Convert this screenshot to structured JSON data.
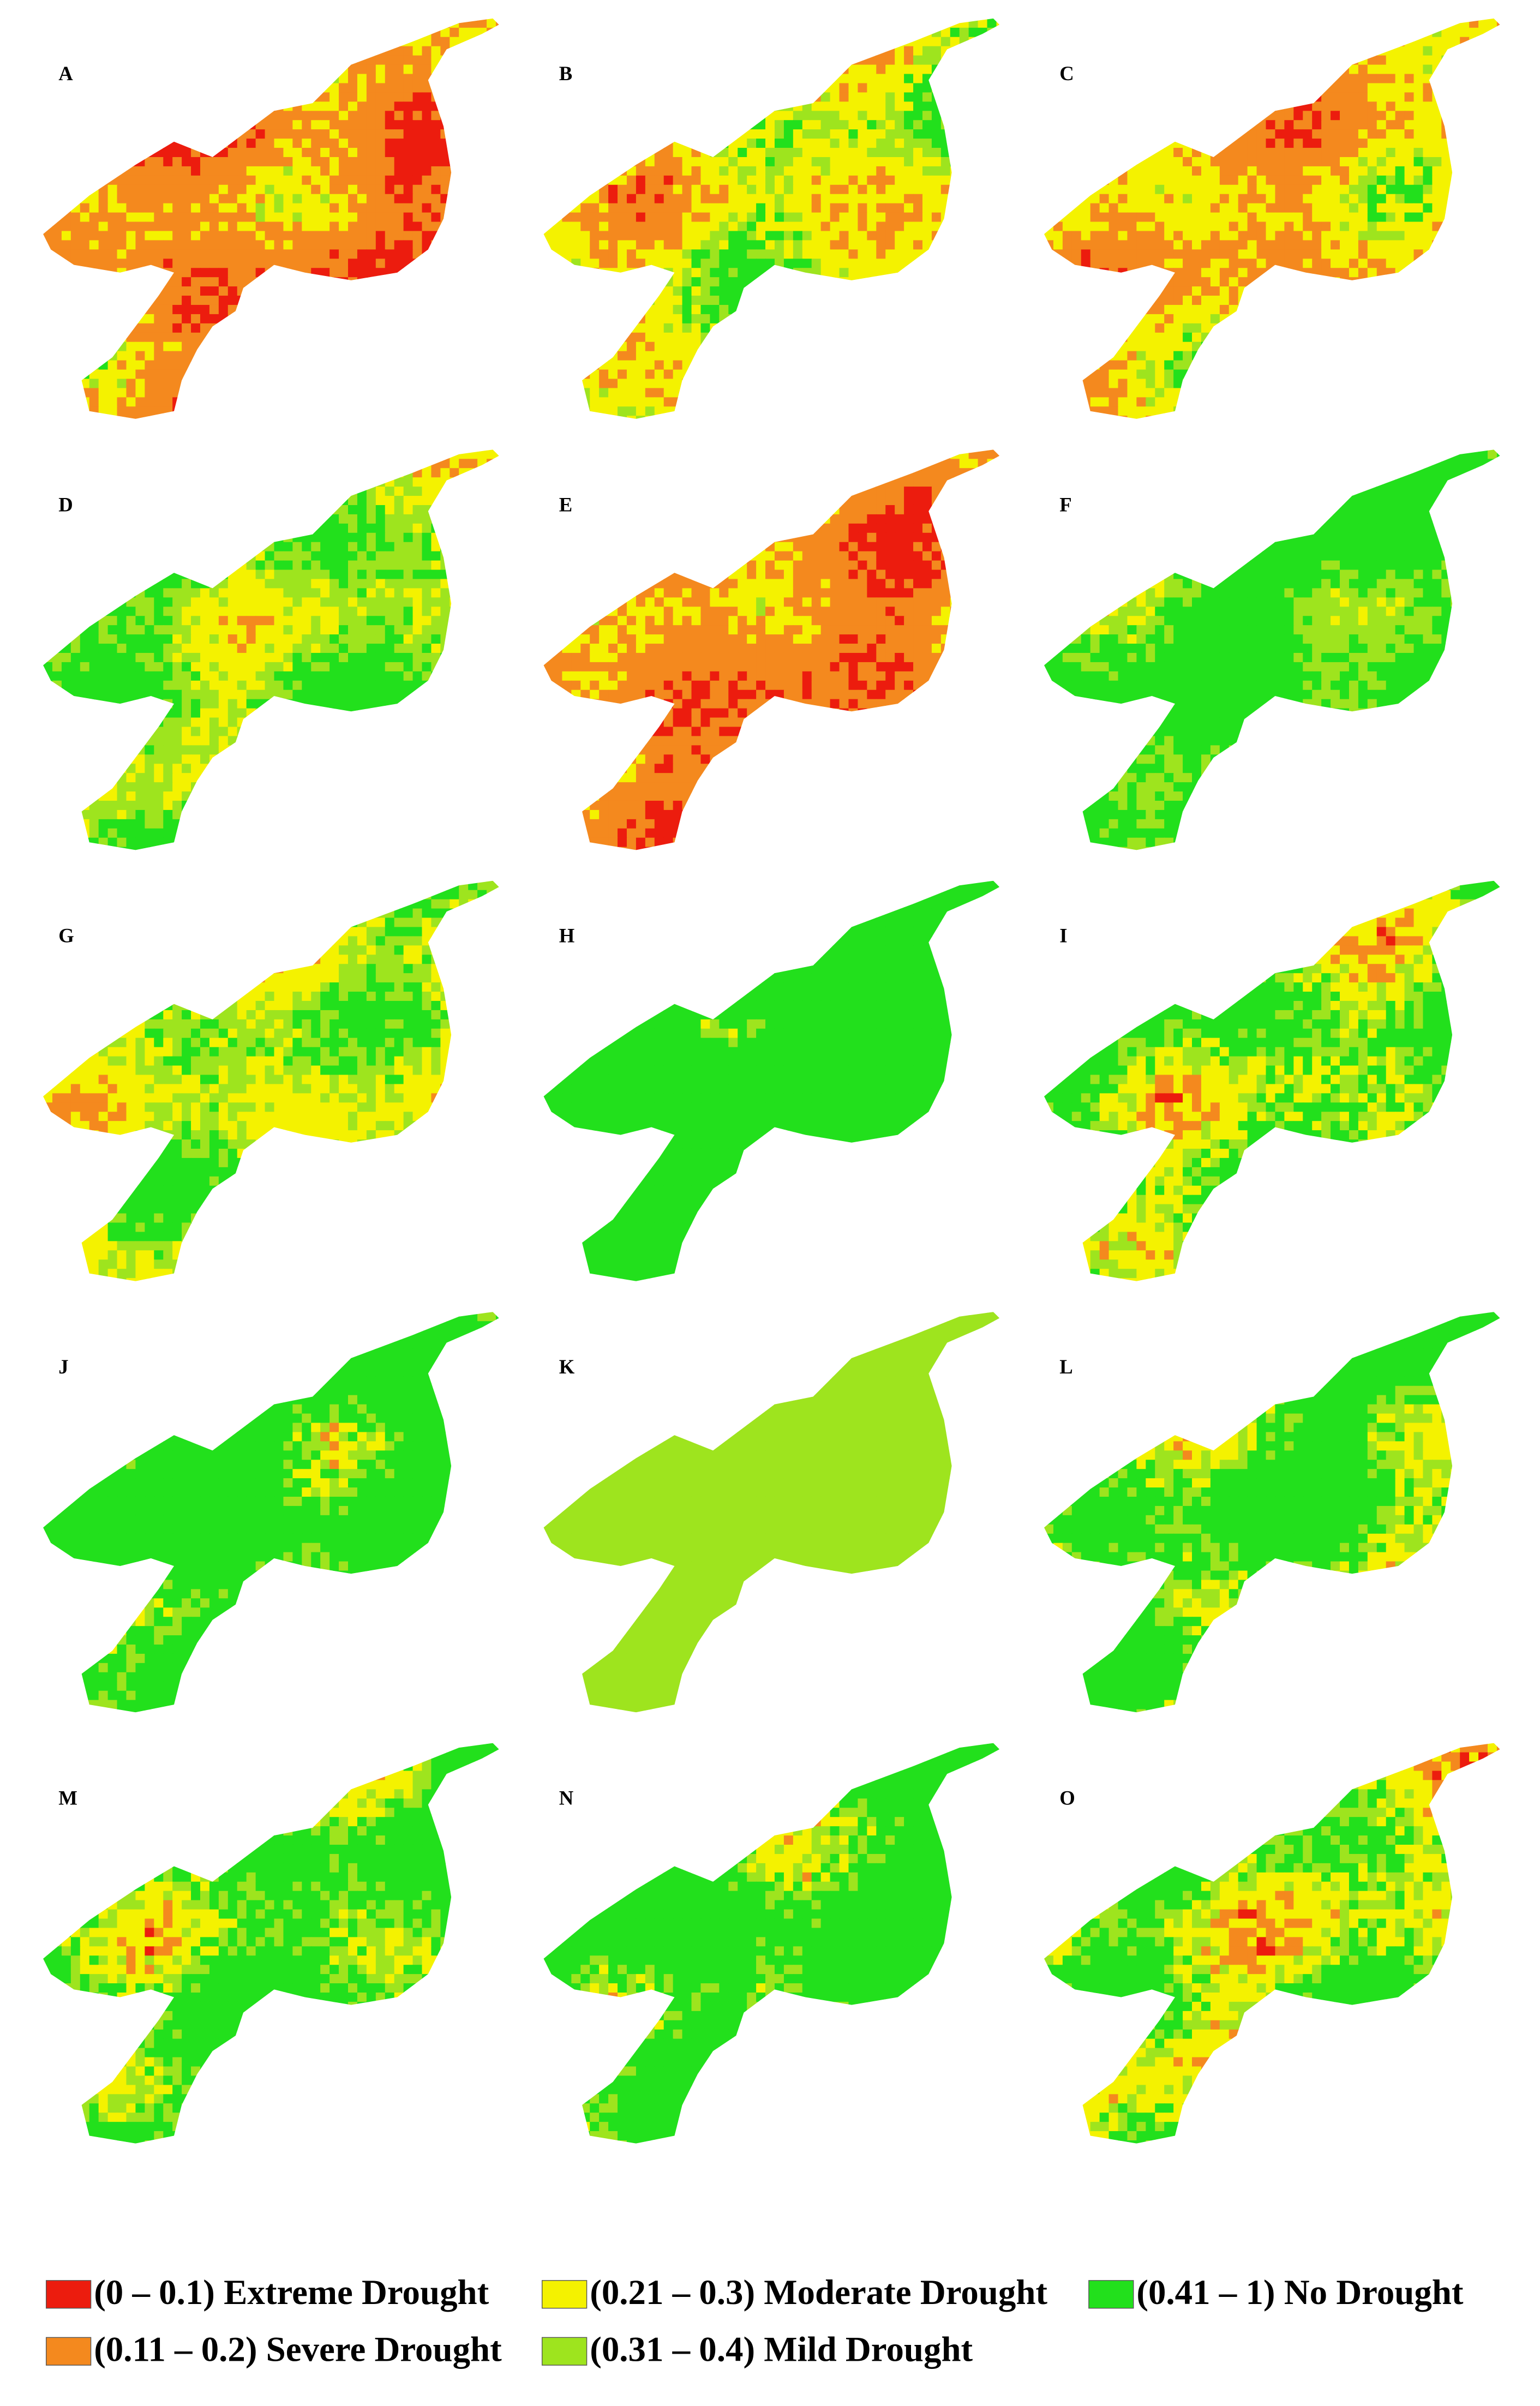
{
  "panels": [
    "A",
    "B",
    "C",
    "D",
    "E",
    "F",
    "G",
    "H",
    "I",
    "J",
    "K",
    "L",
    "M",
    "N",
    "O"
  ],
  "legend": [
    {
      "label": "(0 – 0.1) Extreme Drought",
      "color": "#ec1c0e"
    },
    {
      "label": "(0.21 – 0.3) Moderate Drought",
      "color": "#f4f200"
    },
    {
      "label": "(0.41 – 1) No Drought",
      "color": "#22e01c"
    },
    {
      "label": "(0.11 – 0.2) Severe Drought",
      "color": "#f4891e"
    },
    {
      "label": "(0.31 – 0.4) Mild Drought",
      "color": "#9ee41e"
    }
  ]
}
